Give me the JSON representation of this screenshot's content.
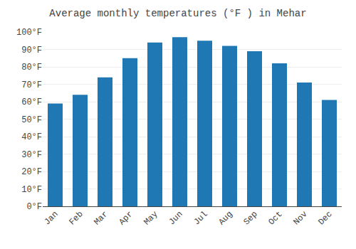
{
  "chart_data": {
    "type": "bar",
    "title": "Average monthly temperatures (°F ) in Mehar",
    "categories": [
      "Jan",
      "Feb",
      "Mar",
      "Apr",
      "May",
      "Jun",
      "Jul",
      "Aug",
      "Sep",
      "Oct",
      "Nov",
      "Dec"
    ],
    "values": [
      59,
      64,
      74,
      85,
      94,
      97,
      95,
      92,
      89,
      82,
      71,
      61
    ],
    "ylim": [
      0,
      100
    ],
    "yticks": [
      {
        "value": 0,
        "label": "0°F"
      },
      {
        "value": 10,
        "label": "10°F"
      },
      {
        "value": 20,
        "label": "20°F"
      },
      {
        "value": 30,
        "label": "30°F"
      },
      {
        "value": 40,
        "label": "40°F"
      },
      {
        "value": 50,
        "label": "50°F"
      },
      {
        "value": 60,
        "label": "60°F"
      },
      {
        "value": 70,
        "label": "70°F"
      },
      {
        "value": 80,
        "label": "80°F"
      },
      {
        "value": 90,
        "label": "90°F"
      },
      {
        "value": 100,
        "label": "100°F"
      }
    ],
    "grid": true
  }
}
